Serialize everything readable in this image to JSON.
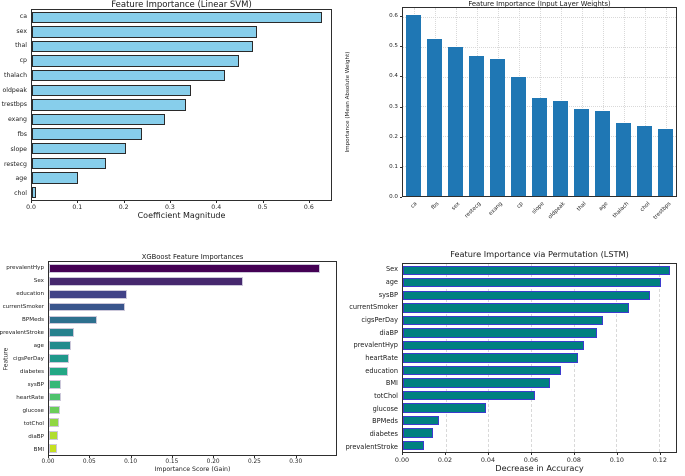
{
  "figure": {
    "background": "#ffffff",
    "description": "2x2 grid of feature-importance bar charts from four models"
  },
  "chart_data": [
    {
      "type": "bar",
      "orientation": "horizontal",
      "title": "Feature Importance (Linear SVM)",
      "xlabel": "Coefficient Magnitude",
      "ylabel": "",
      "categories": [
        "ca",
        "sex",
        "thal",
        "cp",
        "thalach",
        "oldpeak",
        "trestbps",
        "exang",
        "fbs",
        "slope",
        "restecg",
        "age",
        "chol"
      ],
      "values": [
        0.63,
        0.49,
        0.48,
        0.45,
        0.42,
        0.345,
        0.335,
        0.29,
        0.24,
        0.205,
        0.16,
        0.1,
        0.008
      ],
      "xlim": [
        0,
        0.65
      ],
      "xtick_values": [
        0,
        0.1,
        0.2,
        0.3,
        0.4,
        0.5,
        0.6
      ],
      "xtick_labels": [
        "0.0",
        "0.1",
        "0.2",
        "0.3",
        "0.4",
        "0.5",
        "0.6"
      ],
      "bar_color": "#87ceeb",
      "bar_edge_color": "#2a2a2a",
      "grid": false
    },
    {
      "type": "bar",
      "orientation": "vertical",
      "title": "Feature Importance (Input Layer Weights)",
      "xlabel": "",
      "ylabel": "Importance (Mean Absolute Weight)",
      "categories": [
        "ca",
        "fbs",
        "sex",
        "restecg",
        "exang",
        "cp",
        "slope",
        "oldpeak",
        "thal",
        "age",
        "thalach",
        "chol",
        "trestbps"
      ],
      "values": [
        0.605,
        0.525,
        0.5,
        0.47,
        0.46,
        0.4,
        0.33,
        0.32,
        0.29,
        0.285,
        0.245,
        0.235,
        0.225
      ],
      "ylim": [
        0,
        0.63
      ],
      "ytick_values": [
        0,
        0.1,
        0.2,
        0.3,
        0.4,
        0.5,
        0.6
      ],
      "ytick_labels": [
        "0.0",
        "0.1",
        "0.2",
        "0.3",
        "0.4",
        "0.5",
        "0.6"
      ],
      "bar_color": "#1f77b4",
      "bar_edge_color": "none",
      "grid": true,
      "grid_style": "dotted",
      "grid_axis": "both"
    },
    {
      "type": "bar",
      "orientation": "horizontal",
      "title": "XGBoost Feature Importances",
      "xlabel": "Importance Score (Gain)",
      "ylabel": "Feature",
      "categories": [
        "prevalentHyp",
        "Sex",
        "education",
        "currentSmoker",
        "BPMeds",
        "prevalentStroke",
        "age",
        "cigsPerDay",
        "diabetes",
        "sysBP",
        "heartRate",
        "glucose",
        "totChol",
        "diaBP",
        "BMI"
      ],
      "values": [
        0.331,
        0.236,
        0.095,
        0.093,
        0.059,
        0.03,
        0.027,
        0.024,
        0.023,
        0.015,
        0.015,
        0.014,
        0.012,
        0.011,
        0.01
      ],
      "xlim": [
        0,
        0.35
      ],
      "xtick_values": [
        0,
        0.05,
        0.1,
        0.15,
        0.2,
        0.25,
        0.3
      ],
      "xtick_labels": [
        "0.00",
        "0.05",
        "0.10",
        "0.15",
        "0.20",
        "0.25",
        "0.30"
      ],
      "palette": "viridis",
      "bar_colors": [
        "#440154",
        "#46286e",
        "#414287",
        "#39558c",
        "#2d708e",
        "#26818e",
        "#238b8d",
        "#1f988b",
        "#22a784",
        "#36b878",
        "#4dc26c",
        "#6acd5b",
        "#90d743",
        "#b0dd2f",
        "#c5e021"
      ],
      "bar_edge_color": "#ccc8da",
      "grid": false
    },
    {
      "type": "bar",
      "orientation": "horizontal",
      "title": "Feature Importance via Permutation (LSTM)",
      "xlabel": "Decrease in Accuracy",
      "ylabel": "",
      "categories": [
        "Sex",
        "age",
        "sysBP",
        "currentSmoker",
        "cigsPerDay",
        "diaBP",
        "prevalentHyp",
        "heartRate",
        "education",
        "BMI",
        "totChol",
        "glucose",
        "BPMeds",
        "diabetes",
        "prevalentStroke"
      ],
      "values": [
        0.125,
        0.121,
        0.116,
        0.106,
        0.094,
        0.091,
        0.085,
        0.082,
        0.074,
        0.069,
        0.062,
        0.039,
        0.017,
        0.014,
        0.01
      ],
      "xlim": [
        0,
        0.128
      ],
      "xtick_values": [
        0,
        0.02,
        0.04,
        0.06,
        0.08,
        0.1,
        0.12
      ],
      "xtick_labels": [
        "0.00",
        "0.02",
        "0.04",
        "0.06",
        "0.08",
        "0.10",
        "0.12"
      ],
      "bar_color": "#008080",
      "bar_edge_color": "#3b3bce",
      "grid": true,
      "grid_style": "dashed",
      "grid_axis": "x"
    }
  ]
}
